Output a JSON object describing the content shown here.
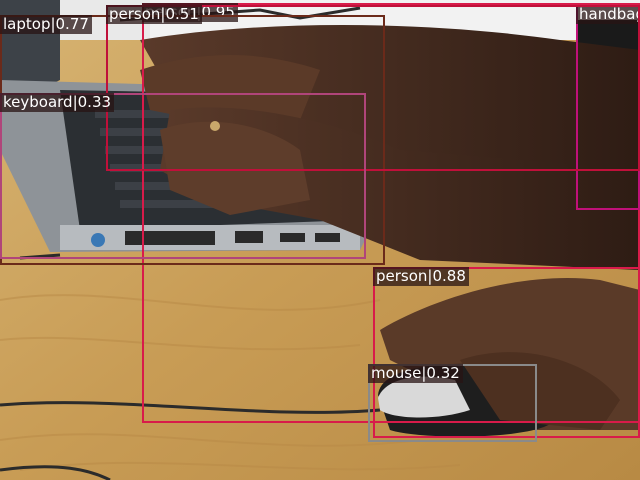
{
  "detections": [
    {
      "label": "person|0.95",
      "color": "#d81b4a"
    },
    {
      "label": "handbag",
      "color": "#c0117a"
    },
    {
      "label": "laptop|0.77",
      "color": "#6b2a1a"
    },
    {
      "label": "person|0.51",
      "color": "#c0103a"
    },
    {
      "label": "keyboard|0.33",
      "color": "#b0457a"
    },
    {
      "label": "person|0.88",
      "color": "#d81b4a"
    },
    {
      "label": "mouse|0.32",
      "color": "#8a8a8a"
    }
  ]
}
